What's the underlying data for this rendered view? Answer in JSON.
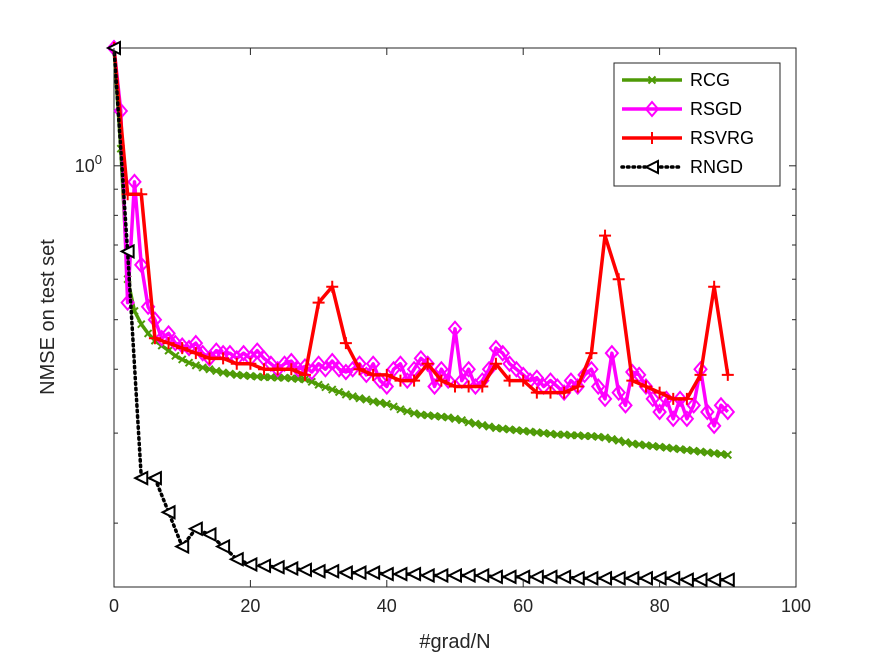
{
  "chart_data": {
    "type": "line",
    "xlabel": "#grad/N",
    "ylabel": "NMSE on test set",
    "xlim": [
      0,
      100
    ],
    "ylim": [
      0.15,
      1.7
    ],
    "yscale": "log",
    "xticks": [
      0,
      20,
      40,
      60,
      80,
      100
    ],
    "xtick_labels": [
      "0",
      "20",
      "40",
      "60",
      "80",
      "100"
    ],
    "yticks": [
      1.0
    ],
    "ytick_labels": [
      "10^0"
    ],
    "legend_position": "top-right",
    "grid": false,
    "series": [
      {
        "name": "RCG",
        "color": "#4e9a06",
        "marker": "x",
        "linestyle": "solid",
        "x": [
          0,
          1,
          2,
          3,
          4,
          5,
          6,
          7,
          8,
          9,
          10,
          11,
          12,
          13,
          14,
          15,
          16,
          17,
          18,
          19,
          20,
          21,
          22,
          23,
          24,
          25,
          26,
          27,
          28,
          29,
          30,
          31,
          32,
          33,
          34,
          35,
          36,
          37,
          38,
          39,
          40,
          41,
          42,
          43,
          44,
          45,
          46,
          47,
          48,
          49,
          50,
          51,
          52,
          53,
          54,
          55,
          56,
          57,
          58,
          59,
          60,
          61,
          62,
          63,
          64,
          65,
          66,
          67,
          68,
          69,
          70,
          71,
          72,
          73,
          74,
          75,
          76,
          77,
          78,
          79,
          80,
          81,
          82,
          83,
          84,
          85,
          86,
          87,
          88,
          89,
          90
        ],
        "y": [
          1.7,
          1.08,
          0.6,
          0.52,
          0.49,
          0.47,
          0.455,
          0.445,
          0.435,
          0.425,
          0.418,
          0.412,
          0.407,
          0.403,
          0.4,
          0.397,
          0.394,
          0.392,
          0.39,
          0.389,
          0.388,
          0.387,
          0.386,
          0.386,
          0.385,
          0.385,
          0.384,
          0.383,
          0.382,
          0.378,
          0.373,
          0.369,
          0.365,
          0.361,
          0.357,
          0.354,
          0.351,
          0.349,
          0.346,
          0.344,
          0.342,
          0.338,
          0.334,
          0.331,
          0.328,
          0.326,
          0.325,
          0.324,
          0.323,
          0.322,
          0.32,
          0.318,
          0.315,
          0.313,
          0.311,
          0.309,
          0.307,
          0.306,
          0.305,
          0.304,
          0.303,
          0.302,
          0.301,
          0.3,
          0.299,
          0.298,
          0.298,
          0.297,
          0.297,
          0.296,
          0.296,
          0.295,
          0.294,
          0.292,
          0.29,
          0.288,
          0.286,
          0.285,
          0.284,
          0.283,
          0.282,
          0.281,
          0.28,
          0.279,
          0.278,
          0.277,
          0.276,
          0.275,
          0.274,
          0.273,
          0.272
        ]
      },
      {
        "name": "RSGD",
        "color": "#ff00ff",
        "marker": "diamond",
        "linestyle": "solid",
        "x": [
          0,
          1,
          2,
          3,
          4,
          5,
          6,
          7,
          8,
          9,
          10,
          11,
          12,
          13,
          14,
          15,
          16,
          17,
          18,
          19,
          20,
          21,
          22,
          23,
          24,
          25,
          26,
          27,
          28,
          29,
          30,
          31,
          32,
          33,
          34,
          35,
          36,
          37,
          38,
          39,
          40,
          41,
          42,
          43,
          44,
          45,
          46,
          47,
          48,
          49,
          50,
          51,
          52,
          53,
          54,
          55,
          56,
          57,
          58,
          59,
          60,
          61,
          62,
          63,
          64,
          65,
          66,
          67,
          68,
          69,
          70,
          71,
          72,
          73,
          74,
          75,
          76,
          77,
          78,
          79,
          80,
          81,
          82,
          83,
          84,
          85,
          86,
          87,
          88,
          89,
          90
        ],
        "y": [
          1.7,
          1.28,
          0.54,
          0.93,
          0.64,
          0.53,
          0.5,
          0.46,
          0.47,
          0.45,
          0.445,
          0.44,
          0.45,
          0.43,
          0.42,
          0.435,
          0.43,
          0.43,
          0.42,
          0.43,
          0.42,
          0.435,
          0.42,
          0.41,
          0.4,
          0.41,
          0.415,
          0.4,
          0.405,
          0.395,
          0.41,
          0.4,
          0.415,
          0.4,
          0.395,
          0.4,
          0.41,
          0.39,
          0.41,
          0.38,
          0.37,
          0.4,
          0.41,
          0.38,
          0.4,
          0.42,
          0.41,
          0.37,
          0.4,
          0.38,
          0.48,
          0.38,
          0.4,
          0.37,
          0.38,
          0.4,
          0.44,
          0.43,
          0.41,
          0.4,
          0.39,
          0.38,
          0.385,
          0.37,
          0.38,
          0.37,
          0.36,
          0.38,
          0.37,
          0.39,
          0.4,
          0.37,
          0.35,
          0.43,
          0.36,
          0.34,
          0.395,
          0.39,
          0.37,
          0.35,
          0.33,
          0.35,
          0.32,
          0.35,
          0.32,
          0.34,
          0.4,
          0.33,
          0.31,
          0.34,
          0.33
        ]
      },
      {
        "name": "RSVRG",
        "color": "#ff0000",
        "marker": "plus",
        "linestyle": "solid",
        "x": [
          0,
          2,
          4,
          6,
          8,
          10,
          12,
          14,
          16,
          18,
          20,
          22,
          24,
          26,
          28,
          30,
          32,
          34,
          36,
          38,
          40,
          42,
          44,
          46,
          48,
          50,
          52,
          54,
          56,
          58,
          60,
          62,
          64,
          66,
          68,
          70,
          72,
          74,
          76,
          78,
          80,
          82,
          84,
          86,
          88,
          90
        ],
        "y": [
          1.7,
          0.88,
          0.88,
          0.46,
          0.45,
          0.44,
          0.43,
          0.42,
          0.42,
          0.41,
          0.41,
          0.4,
          0.4,
          0.4,
          0.39,
          0.54,
          0.58,
          0.45,
          0.4,
          0.39,
          0.39,
          0.38,
          0.38,
          0.41,
          0.38,
          0.37,
          0.37,
          0.37,
          0.41,
          0.38,
          0.38,
          0.36,
          0.36,
          0.36,
          0.37,
          0.43,
          0.73,
          0.6,
          0.38,
          0.37,
          0.36,
          0.35,
          0.35,
          0.39,
          0.58,
          0.39
        ]
      },
      {
        "name": "RNGD",
        "color": "#000000",
        "marker": "triangle-left",
        "linestyle": "dotted",
        "x": [
          0,
          2,
          4,
          6,
          8,
          10,
          12,
          14,
          16,
          18,
          20,
          22,
          24,
          26,
          28,
          30,
          32,
          34,
          36,
          38,
          40,
          42,
          44,
          46,
          48,
          50,
          52,
          54,
          56,
          58,
          60,
          62,
          64,
          66,
          68,
          70,
          72,
          74,
          76,
          78,
          80,
          82,
          84,
          86,
          88,
          90
        ],
        "y": [
          1.7,
          0.68,
          0.245,
          0.245,
          0.21,
          0.18,
          0.195,
          0.19,
          0.18,
          0.17,
          0.166,
          0.165,
          0.164,
          0.163,
          0.162,
          0.161,
          0.161,
          0.16,
          0.16,
          0.16,
          0.159,
          0.159,
          0.159,
          0.158,
          0.158,
          0.158,
          0.158,
          0.158,
          0.157,
          0.157,
          0.157,
          0.157,
          0.157,
          0.157,
          0.156,
          0.156,
          0.156,
          0.156,
          0.156,
          0.156,
          0.156,
          0.156,
          0.155,
          0.155,
          0.155,
          0.155
        ]
      }
    ]
  }
}
